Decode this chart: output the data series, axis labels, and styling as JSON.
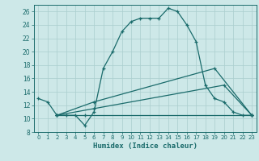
{
  "title": "",
  "xlabel": "Humidex (Indice chaleur)",
  "bg_color": "#cde8e8",
  "grid_color": "#aacece",
  "line_color": "#1a6b6b",
  "xlim": [
    -0.5,
    23.5
  ],
  "ylim": [
    8,
    27
  ],
  "xticks": [
    0,
    1,
    2,
    3,
    4,
    5,
    6,
    7,
    8,
    9,
    10,
    11,
    12,
    13,
    14,
    15,
    16,
    17,
    18,
    19,
    20,
    21,
    22,
    23
  ],
  "yticks": [
    8,
    10,
    12,
    14,
    16,
    18,
    20,
    22,
    24,
    26
  ],
  "curve1_x": [
    0,
    1,
    2,
    3,
    4,
    5,
    6,
    7,
    8,
    9,
    10,
    11,
    12,
    13,
    14,
    15,
    16,
    17,
    18,
    19,
    20,
    21,
    22,
    23
  ],
  "curve1_y": [
    13,
    12.5,
    10.5,
    10.5,
    10.5,
    9,
    11,
    17.5,
    20,
    23,
    24.5,
    25,
    25,
    25,
    26.5,
    26,
    24,
    21.5,
    15,
    13,
    12.5,
    11,
    10.5,
    10.5
  ],
  "curve2_x": [
    2,
    5,
    23
  ],
  "curve2_y": [
    10.5,
    10.5,
    10.5
  ],
  "curve3_x": [
    2,
    6,
    20,
    23
  ],
  "curve3_y": [
    10.5,
    11.5,
    15,
    10.5
  ],
  "curve4_x": [
    2,
    6,
    19,
    23
  ],
  "curve4_y": [
    10.5,
    12.5,
    17.5,
    10.5
  ]
}
